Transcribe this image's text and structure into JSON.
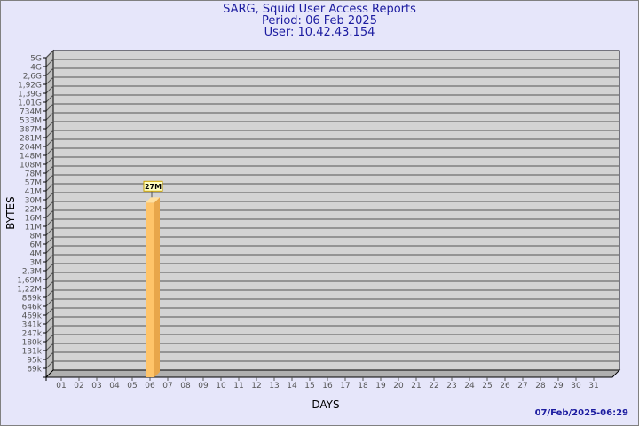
{
  "header": {
    "title": "SARG, Squid User Access Reports",
    "period": "Period: 06 Feb 2025",
    "user": "User: 10.42.43.154"
  },
  "timestamp": "07/Feb/2025-06:29",
  "colors": {
    "background": "#e6e6fa",
    "plot": "#d3d3d3",
    "bar": "#ffc469",
    "bar_side": "#e8a64a",
    "text": "#1c1ca0"
  },
  "chart_data": {
    "type": "bar",
    "style": "3d",
    "xlabel": "DAYS",
    "ylabel": "BYTES",
    "yscale": "log",
    "grid": true,
    "yticks": [
      "5G",
      "4G",
      "2,6G",
      "1,92G",
      "1,39G",
      "1,01G",
      "734M",
      "533M",
      "387M",
      "281M",
      "204M",
      "148M",
      "108M",
      "78M",
      "57M",
      "41M",
      "30M",
      "22M",
      "16M",
      "11M",
      "8M",
      "6M",
      "4M",
      "3M",
      "2,3M",
      "1,69M",
      "1,22M",
      "889k",
      "646k",
      "469k",
      "341k",
      "247k",
      "180k",
      "131k",
      "95k",
      "69k"
    ],
    "categories": [
      "01",
      "02",
      "03",
      "04",
      "05",
      "06",
      "07",
      "08",
      "09",
      "10",
      "11",
      "12",
      "13",
      "14",
      "15",
      "16",
      "17",
      "18",
      "19",
      "20",
      "21",
      "22",
      "23",
      "24",
      "25",
      "26",
      "27",
      "28",
      "29",
      "30",
      "31"
    ],
    "bars": [
      {
        "category": "06",
        "value": 27000000,
        "label": "27M"
      }
    ]
  }
}
